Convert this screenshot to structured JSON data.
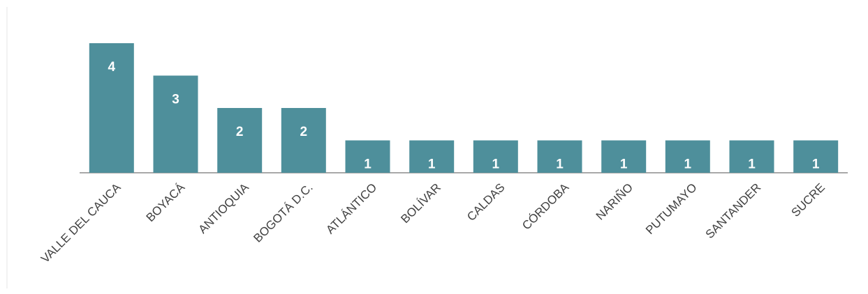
{
  "colors": {
    "bar": "#4e8f9b",
    "value_label": "#ffffff",
    "axis": "#8c8c8c",
    "tick_label": "#404040",
    "background": "#ffffff"
  },
  "chart_data": {
    "type": "bar",
    "categories": [
      "VALLE DEL CAUCA",
      "BOYACÁ",
      "ANTIOQUIA",
      "BOGOTÁ D.C.",
      "ATLÁNTICO",
      "BOLÍVAR",
      "CALDAS",
      "CÓRDOBA",
      "NARIÑO",
      "PUTUMAYO",
      "SANTANDER",
      "SUCRE"
    ],
    "values": [
      4,
      3,
      2,
      2,
      1,
      1,
      1,
      1,
      1,
      1,
      1,
      1
    ],
    "data_labels": [
      "4",
      "3",
      "2",
      "2",
      "1",
      "1",
      "1",
      "1",
      "1",
      "1",
      "1",
      "1"
    ],
    "title": "",
    "xlabel": "",
    "ylabel": "",
    "ylim": [
      0,
      4
    ],
    "grid": false,
    "legend": "none",
    "y_axis_visible": false
  }
}
